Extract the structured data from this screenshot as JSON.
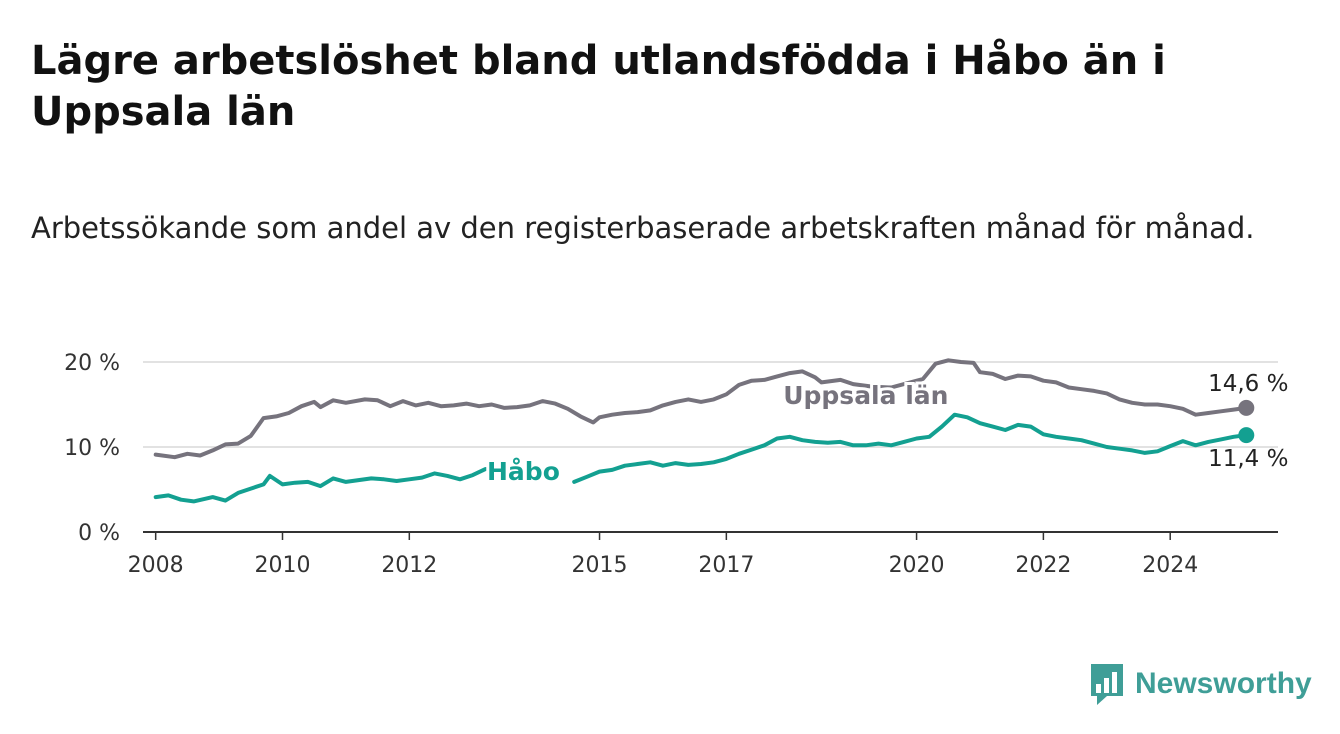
{
  "header": {
    "title": "Lägre arbetslöshet bland utlandsfödda i Håbo än i Uppsala län",
    "subtitle": "Arbetssökande som andel av den registerbaserade arbetskraften månad för månad."
  },
  "branding": {
    "logo_text": "Newsworthy",
    "logo_color": "#3f9e97",
    "logo_icon": "bar-chart-icon"
  },
  "chart_data": {
    "type": "line",
    "x_range": [
      2007.8,
      2025.7
    ],
    "ylim": [
      0,
      20
    ],
    "y_ticks": [
      {
        "value": 0,
        "label": "0 %"
      },
      {
        "value": 10,
        "label": "10 %"
      },
      {
        "value": 20,
        "label": "20 %"
      }
    ],
    "x_ticks": [
      {
        "value": 2008,
        "label": "2008"
      },
      {
        "value": 2010,
        "label": "2010"
      },
      {
        "value": 2012,
        "label": "2012"
      },
      {
        "value": 2015,
        "label": "2015"
      },
      {
        "value": 2017,
        "label": "2017"
      },
      {
        "value": 2020,
        "label": "2020"
      },
      {
        "value": 2022,
        "label": "2022"
      },
      {
        "value": 2024,
        "label": "2024"
      }
    ],
    "grid": "horizontal",
    "series": [
      {
        "name": "Uppsala län",
        "color": "#76737d",
        "end_label": "14,6 %",
        "points": [
          [
            2008.0,
            9.1
          ],
          [
            2008.3,
            8.8
          ],
          [
            2008.5,
            9.2
          ],
          [
            2008.7,
            9.0
          ],
          [
            2008.9,
            9.6
          ],
          [
            2009.1,
            10.3
          ],
          [
            2009.3,
            10.4
          ],
          [
            2009.5,
            11.3
          ],
          [
            2009.7,
            13.4
          ],
          [
            2009.9,
            13.6
          ],
          [
            2010.1,
            14.0
          ],
          [
            2010.3,
            14.8
          ],
          [
            2010.5,
            15.3
          ],
          [
            2010.6,
            14.7
          ],
          [
            2010.8,
            15.5
          ],
          [
            2011.0,
            15.2
          ],
          [
            2011.3,
            15.6
          ],
          [
            2011.5,
            15.5
          ],
          [
            2011.7,
            14.8
          ],
          [
            2011.9,
            15.4
          ],
          [
            2012.1,
            14.9
          ],
          [
            2012.3,
            15.2
          ],
          [
            2012.5,
            14.8
          ],
          [
            2012.7,
            14.9
          ],
          [
            2012.9,
            15.1
          ],
          [
            2013.1,
            14.8
          ],
          [
            2013.3,
            15.0
          ],
          [
            2013.5,
            14.6
          ],
          [
            2013.7,
            14.7
          ],
          [
            2013.9,
            14.9
          ],
          [
            2014.1,
            15.4
          ],
          [
            2014.3,
            15.1
          ],
          [
            2014.5,
            14.5
          ],
          [
            2014.7,
            13.6
          ],
          [
            2014.9,
            12.9
          ],
          [
            2015.0,
            13.5
          ],
          [
            2015.2,
            13.8
          ],
          [
            2015.4,
            14.0
          ],
          [
            2015.6,
            14.1
          ],
          [
            2015.8,
            14.3
          ],
          [
            2016.0,
            14.9
          ],
          [
            2016.2,
            15.3
          ],
          [
            2016.4,
            15.6
          ],
          [
            2016.6,
            15.3
          ],
          [
            2016.8,
            15.6
          ],
          [
            2017.0,
            16.2
          ],
          [
            2017.2,
            17.3
          ],
          [
            2017.4,
            17.8
          ],
          [
            2017.6,
            17.9
          ],
          [
            2017.8,
            18.3
          ],
          [
            2018.0,
            18.7
          ],
          [
            2018.2,
            18.9
          ],
          [
            2018.4,
            18.2
          ],
          [
            2018.5,
            17.6
          ],
          [
            2018.8,
            17.9
          ],
          [
            2019.0,
            17.4
          ],
          [
            2019.3,
            17.1
          ],
          [
            2019.6,
            17.0
          ],
          [
            2019.9,
            17.6
          ],
          [
            2020.1,
            18.0
          ],
          [
            2020.3,
            19.8
          ],
          [
            2020.5,
            20.2
          ],
          [
            2020.7,
            20.0
          ],
          [
            2020.9,
            19.9
          ],
          [
            2021.0,
            18.8
          ],
          [
            2021.2,
            18.6
          ],
          [
            2021.4,
            18.0
          ],
          [
            2021.6,
            18.4
          ],
          [
            2021.8,
            18.3
          ],
          [
            2022.0,
            17.8
          ],
          [
            2022.2,
            17.6
          ],
          [
            2022.4,
            17.0
          ],
          [
            2022.6,
            16.8
          ],
          [
            2022.8,
            16.6
          ],
          [
            2023.0,
            16.3
          ],
          [
            2023.2,
            15.6
          ],
          [
            2023.4,
            15.2
          ],
          [
            2023.6,
            15.0
          ],
          [
            2023.8,
            15.0
          ],
          [
            2024.0,
            14.8
          ],
          [
            2024.2,
            14.5
          ],
          [
            2024.4,
            13.8
          ],
          [
            2024.6,
            14.0
          ],
          [
            2024.8,
            14.2
          ],
          [
            2025.0,
            14.4
          ],
          [
            2025.2,
            14.6
          ]
        ]
      },
      {
        "name": "Håbo",
        "color": "#13a091",
        "end_label": "11,4 %",
        "points": [
          [
            2008.0,
            4.1
          ],
          [
            2008.2,
            4.3
          ],
          [
            2008.4,
            3.8
          ],
          [
            2008.6,
            3.6
          ],
          [
            2008.9,
            4.1
          ],
          [
            2009.1,
            3.7
          ],
          [
            2009.3,
            4.6
          ],
          [
            2009.5,
            5.1
          ],
          [
            2009.7,
            5.6
          ],
          [
            2009.8,
            6.6
          ],
          [
            2010.0,
            5.6
          ],
          [
            2010.2,
            5.8
          ],
          [
            2010.4,
            5.9
          ],
          [
            2010.6,
            5.4
          ],
          [
            2010.8,
            6.3
          ],
          [
            2011.0,
            5.9
          ],
          [
            2011.2,
            6.1
          ],
          [
            2011.4,
            6.3
          ],
          [
            2011.6,
            6.2
          ],
          [
            2011.8,
            6.0
          ],
          [
            2012.0,
            6.2
          ],
          [
            2012.2,
            6.4
          ],
          [
            2012.4,
            6.9
          ],
          [
            2012.6,
            6.6
          ],
          [
            2012.8,
            6.2
          ],
          [
            2013.0,
            6.7
          ],
          [
            2013.2,
            7.4
          ],
          [
            2014.6,
            5.9
          ],
          [
            2014.8,
            6.5
          ],
          [
            2015.0,
            7.1
          ],
          [
            2015.2,
            7.3
          ],
          [
            2015.4,
            7.8
          ],
          [
            2015.6,
            8.0
          ],
          [
            2015.8,
            8.2
          ],
          [
            2016.0,
            7.8
          ],
          [
            2016.2,
            8.1
          ],
          [
            2016.4,
            7.9
          ],
          [
            2016.6,
            8.0
          ],
          [
            2016.8,
            8.2
          ],
          [
            2017.0,
            8.6
          ],
          [
            2017.2,
            9.2
          ],
          [
            2017.4,
            9.7
          ],
          [
            2017.6,
            10.2
          ],
          [
            2017.8,
            11.0
          ],
          [
            2018.0,
            11.2
          ],
          [
            2018.2,
            10.8
          ],
          [
            2018.4,
            10.6
          ],
          [
            2018.6,
            10.5
          ],
          [
            2018.8,
            10.6
          ],
          [
            2019.0,
            10.2
          ],
          [
            2019.2,
            10.2
          ],
          [
            2019.4,
            10.4
          ],
          [
            2019.6,
            10.2
          ],
          [
            2019.8,
            10.6
          ],
          [
            2020.0,
            11.0
          ],
          [
            2020.2,
            11.2
          ],
          [
            2020.4,
            12.4
          ],
          [
            2020.6,
            13.8
          ],
          [
            2020.8,
            13.5
          ],
          [
            2021.0,
            12.8
          ],
          [
            2021.2,
            12.4
          ],
          [
            2021.4,
            12.0
          ],
          [
            2021.6,
            12.6
          ],
          [
            2021.8,
            12.4
          ],
          [
            2022.0,
            11.5
          ],
          [
            2022.2,
            11.2
          ],
          [
            2022.4,
            11.0
          ],
          [
            2022.6,
            10.8
          ],
          [
            2022.8,
            10.4
          ],
          [
            2023.0,
            10.0
          ],
          [
            2023.2,
            9.8
          ],
          [
            2023.4,
            9.6
          ],
          [
            2023.6,
            9.3
          ],
          [
            2023.8,
            9.5
          ],
          [
            2024.0,
            10.1
          ],
          [
            2024.2,
            10.7
          ],
          [
            2024.4,
            10.2
          ],
          [
            2024.6,
            10.6
          ],
          [
            2024.8,
            10.9
          ],
          [
            2025.0,
            11.2
          ],
          [
            2025.2,
            11.4
          ]
        ]
      }
    ]
  }
}
